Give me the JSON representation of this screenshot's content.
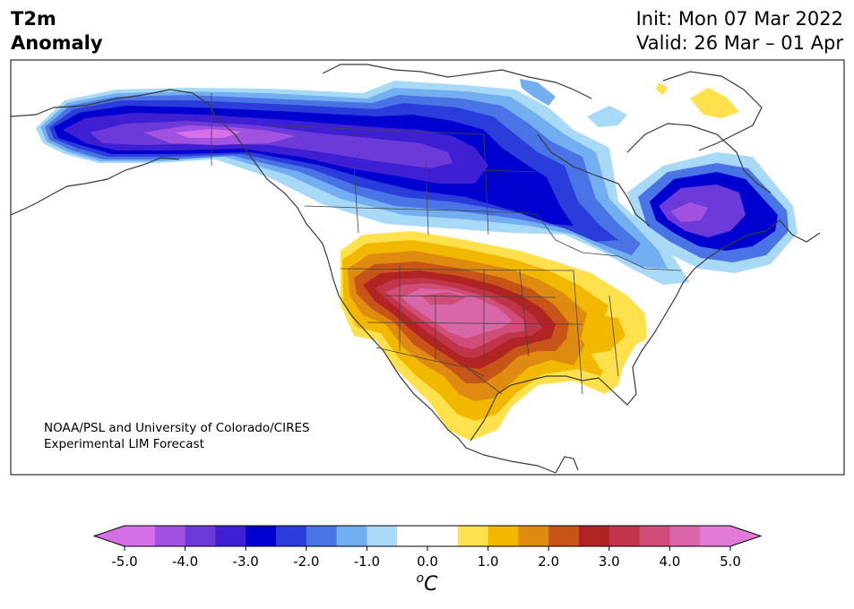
{
  "header": {
    "variable": "T2m",
    "field": "Anomaly",
    "init": "Init: Mon 07 Mar 2022",
    "valid": "Valid: 26 Mar – 01 Apr"
  },
  "credit": {
    "line1": "NOAA/PSL and University of Colorado/CIRES",
    "line2": "Experimental LIM Forecast"
  },
  "colorbar": {
    "unit_prefix": "o",
    "unit": "C",
    "ticks": [
      "-5.0",
      "-4.0",
      "-3.0",
      "-2.0",
      "-1.0",
      "0.0",
      "1.0",
      "2.0",
      "3.0",
      "4.0",
      "5.0"
    ],
    "tick_values": [
      -5,
      -4,
      -3,
      -2,
      -1,
      0,
      1,
      2,
      3,
      4,
      5
    ],
    "levels": [
      -5,
      -4.5,
      -4,
      -3.5,
      -3,
      -2.5,
      -2,
      -1.5,
      -1,
      -0.5,
      0.5,
      1,
      1.5,
      2,
      2.5,
      3,
      3.5,
      4,
      4.5,
      5
    ],
    "colors": [
      "#d570e8",
      "#a152e0",
      "#6c3ad8",
      "#3f1fd2",
      "#0000cf",
      "#2a3ddb",
      "#4a74e6",
      "#72aef0",
      "#a8daf8",
      "#ffffff",
      "#ffe04d",
      "#f2b800",
      "#df8a10",
      "#c75518",
      "#b02424",
      "#c2344a",
      "#d04d78",
      "#d966a8",
      "#e27ad8"
    ],
    "under_color": "#d570e8",
    "over_color": "#e27ad8"
  },
  "map": {
    "region": "North America",
    "anomaly_areas": [
      {
        "name": "Alaska / northern Canada",
        "sign": "cold",
        "peak_anomaly_c": -5.0
      },
      {
        "name": "Labrador / Quebec",
        "sign": "cold",
        "peak_anomaly_c": -4.5
      },
      {
        "name": "Northern Great Plains / Great Lakes",
        "sign": "cold",
        "peak_anomaly_c": -2.5
      },
      {
        "name": "Southwest / Southern Plains",
        "sign": "warm",
        "peak_anomaly_c": 4.5
      },
      {
        "name": "Southeast US",
        "sign": "warm",
        "peak_anomaly_c": 1.5
      },
      {
        "name": "Northern Greenland coast",
        "sign": "warm",
        "peak_anomaly_c": 1.0
      }
    ]
  }
}
